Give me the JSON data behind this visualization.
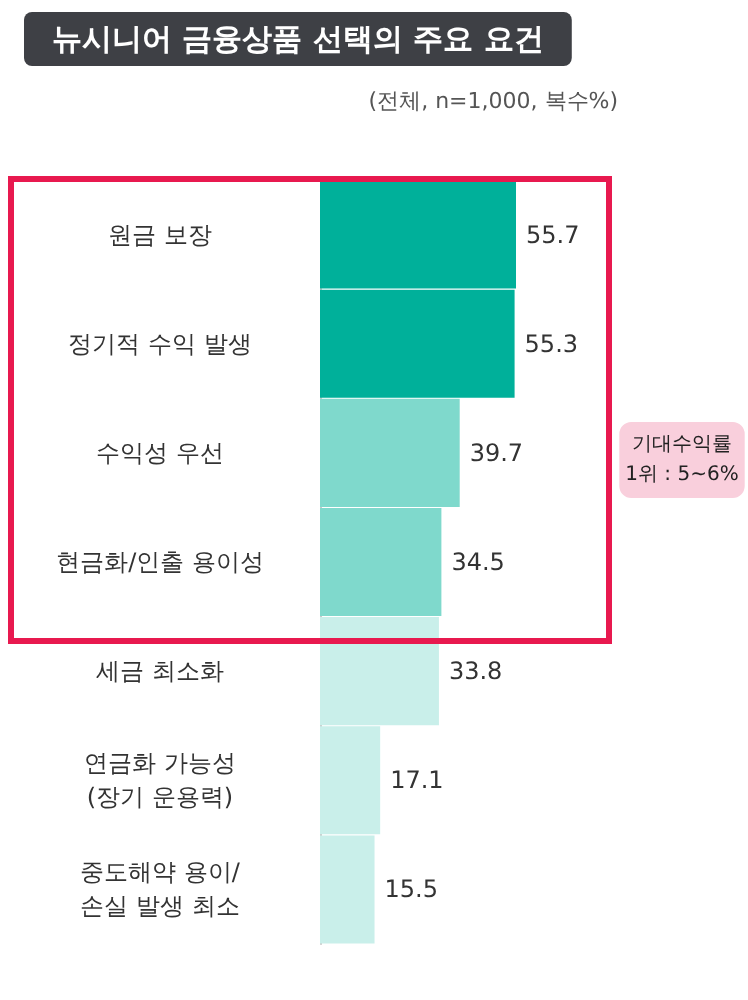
{
  "chart_data": {
    "type": "bar",
    "orientation": "horizontal",
    "title": "뉴시니어 금융상품 선택의 주요 요건",
    "subtitle": "(전체, n=1,000, 복수%)",
    "categories": [
      "원금 보장",
      "정기적 수익 발생",
      "수익성 우선",
      "현금화/인출 용이성",
      "세금 최소화",
      "연금화 가능성\n(장기 운용력)",
      "중도해약 용이/\n손실 발생 최소"
    ],
    "values": [
      55.7,
      55.3,
      39.7,
      34.5,
      33.8,
      17.1,
      15.5
    ],
    "colors": [
      "#00b09a",
      "#00b09a",
      "#7fd9cc",
      "#7fd9cc",
      "#c9efea",
      "#c9efea",
      "#c9efea"
    ],
    "data_labels": true,
    "annotations": [
      "기대수익률\n1위 : 5~6%"
    ]
  }
}
